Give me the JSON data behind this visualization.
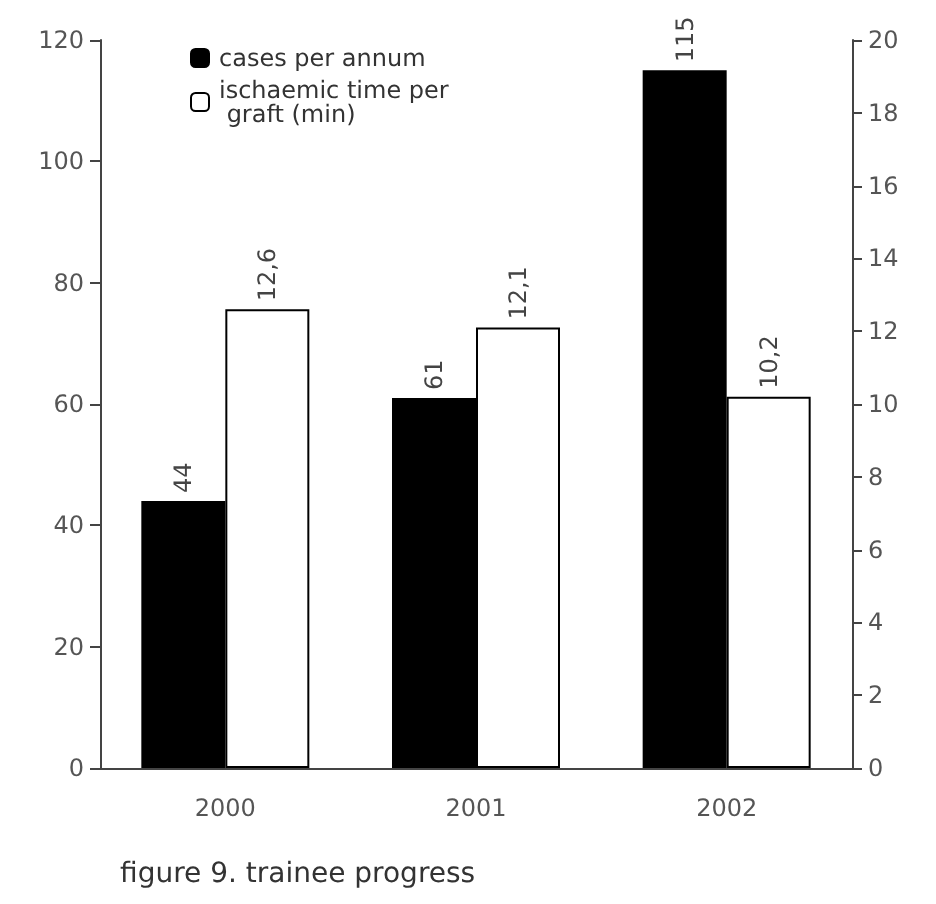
{
  "chart_data": {
    "type": "bar",
    "categories": [
      "2000",
      "2001",
      "2002"
    ],
    "series": [
      {
        "name": "cases per annum",
        "color": "#000000",
        "values": [
          44,
          61,
          115
        ],
        "value_labels": [
          "44",
          "61",
          "115"
        ]
      },
      {
        "name": "ischaemic time per graft (min)",
        "color": "#ffffff",
        "values": [
          12.6,
          12.1,
          10.2
        ],
        "value_labels": [
          "12,6",
          "12,1",
          "10,2"
        ],
        "axis": "y2"
      }
    ],
    "ylim": [
      0,
      120
    ],
    "yticks": [
      0,
      20,
      40,
      60,
      80,
      100,
      120
    ],
    "y2lim": [
      0,
      20
    ],
    "y2ticks": [
      0,
      2,
      4,
      6,
      8,
      10,
      12,
      14,
      16,
      18,
      20
    ],
    "grid": false,
    "legend": "top left",
    "annotations": [
      "figure 9. trainee progress"
    ]
  }
}
